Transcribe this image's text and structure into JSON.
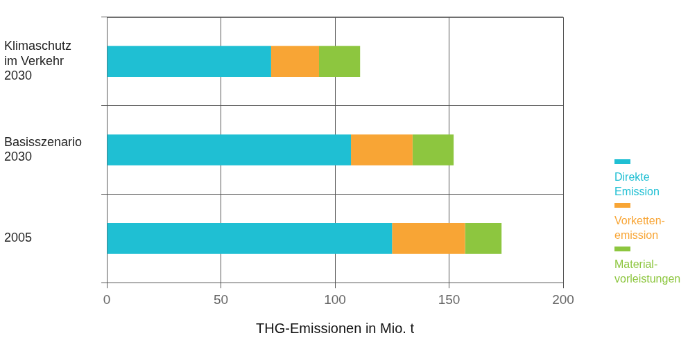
{
  "chart_data": {
    "type": "bar",
    "orientation": "horizontal",
    "stacked": true,
    "categories": [
      "Klimaschutz\nim Verkehr\n2030",
      "Basisszenario\n2030",
      "2005"
    ],
    "series": [
      {
        "name": "Direkte\nEmission",
        "color": "#1fbfd3",
        "values": [
          72,
          107,
          125
        ]
      },
      {
        "name": "Vorketten-\nemission",
        "color": "#f8a535",
        "values": [
          21,
          27,
          32
        ]
      },
      {
        "name": "Material-\nvorleistungen",
        "color": "#8dc63f",
        "values": [
          18,
          18,
          16
        ]
      }
    ],
    "xlim": [
      0,
      200
    ],
    "xticks": [
      0,
      50,
      100,
      150,
      200
    ],
    "xlabel": "THG-Emissionen in Mio. t",
    "grid": true,
    "legend": "right"
  }
}
